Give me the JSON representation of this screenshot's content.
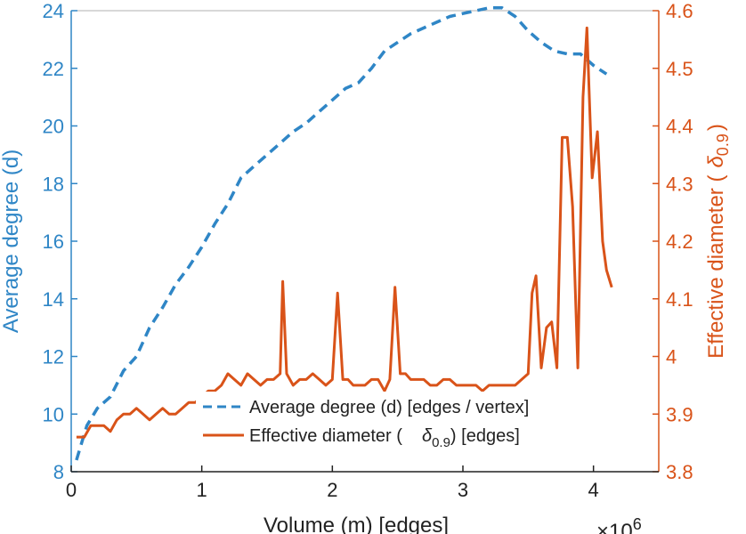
{
  "chart_data": {
    "type": "line",
    "xlabel": "Volume (m) [edges]",
    "x_exponent": "×10",
    "x_exponent_power": "6",
    "xlim": [
      0,
      4.5
    ],
    "x_ticks": [
      "0",
      "1",
      "2",
      "3",
      "4"
    ],
    "y_left": {
      "label": "Average degree (d)",
      "lim": [
        8,
        24
      ],
      "ticks": [
        "8",
        "10",
        "12",
        "14",
        "16",
        "18",
        "20",
        "22",
        "24"
      ],
      "color": "#2f86c6"
    },
    "y_right": {
      "label_text": "Effective diameter (",
      "label_symbol": "δ",
      "label_subscript": "0.9",
      "label_close": ")",
      "lim": [
        3.8,
        4.6
      ],
      "ticks": [
        "3.8",
        "3.9",
        "4",
        "4.1",
        "4.2",
        "4.3",
        "4.4",
        "4.5",
        "4.6"
      ],
      "color": "#d95319"
    },
    "legend": {
      "position": "lower-center",
      "entries": [
        {
          "text": "Average degree (d) [edges / vertex]"
        },
        {
          "text_before": "Effective diameter (",
          "symbol": "δ",
          "subscript": "0.9",
          "text_after": ") [edges]"
        }
      ]
    },
    "series": [
      {
        "name": "Average degree (d) [edges / vertex]",
        "axis": "left",
        "style": "dashed",
        "color": "#2f86c6",
        "x": [
          0.04,
          0.08,
          0.12,
          0.16,
          0.2,
          0.3,
          0.4,
          0.5,
          0.6,
          0.7,
          0.8,
          0.9,
          1.0,
          1.1,
          1.2,
          1.3,
          1.4,
          1.5,
          1.6,
          1.7,
          1.8,
          1.9,
          2.0,
          2.1,
          2.2,
          2.3,
          2.4,
          2.5,
          2.6,
          2.7,
          2.8,
          2.9,
          3.0,
          3.1,
          3.2,
          3.3,
          3.4,
          3.5,
          3.6,
          3.7,
          3.8,
          3.9,
          4.0,
          4.1
        ],
        "values": [
          8.4,
          9.0,
          9.6,
          9.9,
          10.2,
          10.6,
          11.5,
          12.0,
          13.0,
          13.7,
          14.5,
          15.1,
          15.8,
          16.6,
          17.3,
          18.2,
          18.6,
          19.0,
          19.4,
          19.8,
          20.1,
          20.5,
          20.9,
          21.3,
          21.5,
          22.0,
          22.6,
          22.9,
          23.2,
          23.4,
          23.6,
          23.8,
          23.9,
          24.0,
          24.1,
          24.1,
          23.8,
          23.3,
          22.9,
          22.6,
          22.5,
          22.5,
          22.1,
          21.8
        ]
      },
      {
        "name": "Effective diameter (δ0.9) [edges]",
        "axis": "right",
        "style": "solid",
        "color": "#d95319",
        "x": [
          0.04,
          0.1,
          0.15,
          0.2,
          0.25,
          0.3,
          0.35,
          0.4,
          0.45,
          0.5,
          0.55,
          0.6,
          0.65,
          0.7,
          0.75,
          0.8,
          0.85,
          0.9,
          0.95,
          1.0,
          1.05,
          1.1,
          1.15,
          1.2,
          1.25,
          1.3,
          1.35,
          1.4,
          1.45,
          1.5,
          1.55,
          1.6,
          1.62,
          1.65,
          1.7,
          1.75,
          1.8,
          1.85,
          1.9,
          1.95,
          2.0,
          2.04,
          2.08,
          2.12,
          2.16,
          2.2,
          2.25,
          2.3,
          2.35,
          2.4,
          2.44,
          2.48,
          2.52,
          2.56,
          2.6,
          2.65,
          2.7,
          2.75,
          2.8,
          2.85,
          2.9,
          2.95,
          3.0,
          3.05,
          3.1,
          3.15,
          3.2,
          3.25,
          3.3,
          3.35,
          3.4,
          3.45,
          3.5,
          3.53,
          3.56,
          3.6,
          3.64,
          3.68,
          3.72,
          3.76,
          3.8,
          3.84,
          3.88,
          3.92,
          3.95,
          3.99,
          4.03,
          4.07,
          4.1,
          4.14
        ],
        "values": [
          3.86,
          3.86,
          3.88,
          3.88,
          3.88,
          3.87,
          3.89,
          3.9,
          3.9,
          3.91,
          3.9,
          3.89,
          3.9,
          3.91,
          3.9,
          3.9,
          3.91,
          3.92,
          3.92,
          3.93,
          3.94,
          3.94,
          3.95,
          3.97,
          3.96,
          3.95,
          3.97,
          3.96,
          3.95,
          3.96,
          3.96,
          3.97,
          4.13,
          3.97,
          3.95,
          3.96,
          3.96,
          3.97,
          3.96,
          3.95,
          3.96,
          4.11,
          3.96,
          3.96,
          3.95,
          3.95,
          3.95,
          3.96,
          3.96,
          3.94,
          3.96,
          4.12,
          3.97,
          3.97,
          3.96,
          3.96,
          3.96,
          3.95,
          3.95,
          3.96,
          3.96,
          3.95,
          3.95,
          3.95,
          3.95,
          3.94,
          3.95,
          3.95,
          3.95,
          3.95,
          3.95,
          3.96,
          3.97,
          4.11,
          4.14,
          3.98,
          4.05,
          4.06,
          3.98,
          4.38,
          4.38,
          4.26,
          3.98,
          4.45,
          4.57,
          4.31,
          4.39,
          4.2,
          4.15,
          4.12
        ]
      }
    ]
  }
}
